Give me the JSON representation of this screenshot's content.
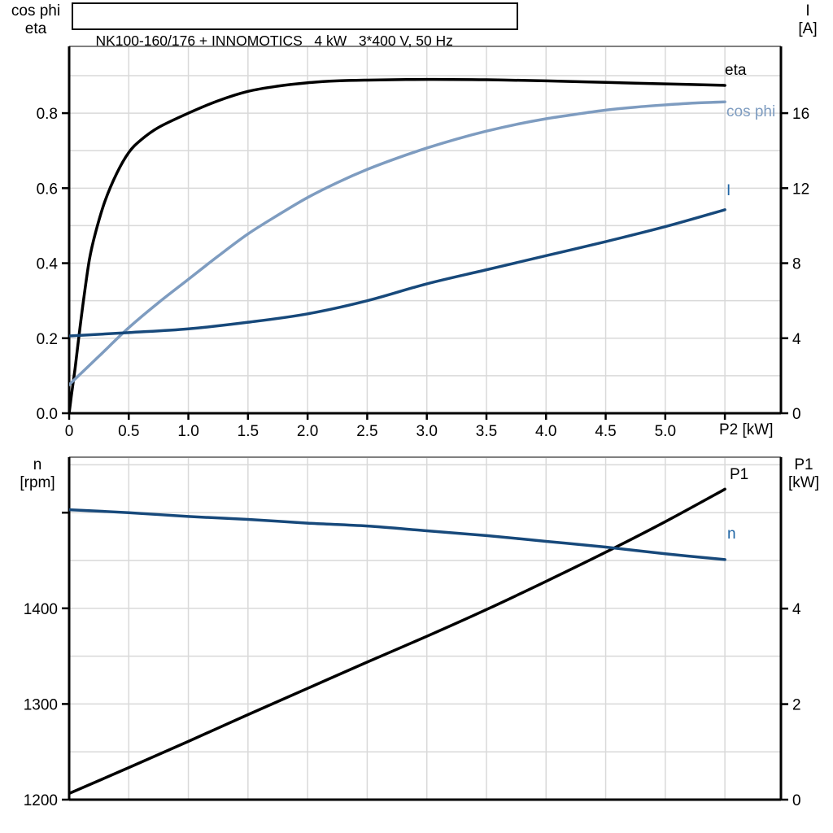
{
  "title_box": {
    "text": "NK100-160/176 + INNOMOTICS   4 kW   3*400 V, 50 Hz"
  },
  "colors": {
    "grid": "#d9d9d9",
    "axis": "#000000",
    "panel_top_border": "#808080",
    "background": "#ffffff",
    "eta_curve": "#000000",
    "cos_phi_curve": "#7e9cc0",
    "current_curve": "#17497b",
    "speed_curve": "#17497b",
    "p1_curve": "#000000",
    "blue_label": "#2166a5"
  },
  "chart_data": [
    {
      "type": "line",
      "panel": "top",
      "grid": true,
      "x_axis": {
        "label": "P2 [kW]",
        "min": 0,
        "max": 5.97,
        "grid_step": 0.5,
        "ticks": [
          {
            "v": 0,
            "label": "0"
          },
          {
            "v": 0.5,
            "label": "0.5"
          },
          {
            "v": 1,
            "label": "1.0"
          },
          {
            "v": 1.5,
            "label": "1.5"
          },
          {
            "v": 2,
            "label": "2.0"
          },
          {
            "v": 2.5,
            "label": "2.5"
          },
          {
            "v": 3,
            "label": "3.0"
          },
          {
            "v": 3.5,
            "label": "3.5"
          },
          {
            "v": 4,
            "label": "4.0"
          },
          {
            "v": 4.5,
            "label": "4.5"
          },
          {
            "v": 5,
            "label": "5.0"
          },
          {
            "v": 5.5,
            "label": ""
          }
        ]
      },
      "left_axis": {
        "title_lines": [
          "cos phi",
          "eta"
        ],
        "min": 0,
        "max": 0.978,
        "grid_step": 0.1,
        "ticks": [
          {
            "v": 0,
            "label": "0.0"
          },
          {
            "v": 0.2,
            "label": "0.2"
          },
          {
            "v": 0.4,
            "label": "0.4"
          },
          {
            "v": 0.6,
            "label": "0.6"
          },
          {
            "v": 0.8,
            "label": "0.8"
          }
        ]
      },
      "right_axis": {
        "title_lines": [
          "I",
          "[A]"
        ],
        "min": 0,
        "max": 19.56,
        "ticks": [
          {
            "v": 0,
            "label": "0"
          },
          {
            "v": 4,
            "label": "4"
          },
          {
            "v": 8,
            "label": "8"
          },
          {
            "v": 12,
            "label": "12"
          },
          {
            "v": 16,
            "label": "16"
          }
        ]
      },
      "series": [
        {
          "name": "eta",
          "label": "eta",
          "axis": "left",
          "color": "#000000",
          "label_color": "#000000",
          "points": [
            [
              0,
              0
            ],
            [
              0.02,
              0.05
            ],
            [
              0.05,
              0.12
            ],
            [
              0.08,
              0.2
            ],
            [
              0.12,
              0.3
            ],
            [
              0.17,
              0.41
            ],
            [
              0.22,
              0.48
            ],
            [
              0.3,
              0.565
            ],
            [
              0.4,
              0.64
            ],
            [
              0.5,
              0.695
            ],
            [
              0.6,
              0.728
            ],
            [
              0.75,
              0.762
            ],
            [
              1,
              0.8
            ],
            [
              1.25,
              0.833
            ],
            [
              1.5,
              0.858
            ],
            [
              1.75,
              0.872
            ],
            [
              2,
              0.881
            ],
            [
              2.25,
              0.886
            ],
            [
              2.5,
              0.888
            ],
            [
              3,
              0.89
            ],
            [
              3.5,
              0.889
            ],
            [
              4,
              0.886
            ],
            [
              4.5,
              0.882
            ],
            [
              5,
              0.878
            ],
            [
              5.5,
              0.874
            ]
          ]
        },
        {
          "name": "cos phi",
          "label": "cos phi",
          "axis": "left",
          "color": "#7e9cc0",
          "label_color": "#7e9cc0",
          "points": [
            [
              0,
              0.076
            ],
            [
              0.25,
              0.152
            ],
            [
              0.5,
              0.228
            ],
            [
              0.75,
              0.295
            ],
            [
              1,
              0.357
            ],
            [
              1.25,
              0.419
            ],
            [
              1.5,
              0.478
            ],
            [
              1.75,
              0.528
            ],
            [
              2,
              0.575
            ],
            [
              2.25,
              0.615
            ],
            [
              2.5,
              0.65
            ],
            [
              2.75,
              0.68
            ],
            [
              3,
              0.707
            ],
            [
              3.25,
              0.731
            ],
            [
              3.5,
              0.752
            ],
            [
              3.75,
              0.77
            ],
            [
              4,
              0.785
            ],
            [
              4.25,
              0.797
            ],
            [
              4.5,
              0.808
            ],
            [
              4.75,
              0.816
            ],
            [
              5,
              0.822
            ],
            [
              5.25,
              0.827
            ],
            [
              5.5,
              0.83
            ]
          ]
        },
        {
          "name": "I",
          "label": "I",
          "axis": "right",
          "color": "#17497b",
          "label_color": "#2166a5",
          "points": [
            [
              0,
              4.12
            ],
            [
              0.5,
              4.3
            ],
            [
              1,
              4.5
            ],
            [
              1.5,
              4.85
            ],
            [
              2,
              5.3
            ],
            [
              2.5,
              6.0
            ],
            [
              3,
              6.9
            ],
            [
              3.5,
              7.65
            ],
            [
              4,
              8.4
            ],
            [
              4.5,
              9.15
            ],
            [
              5,
              9.95
            ],
            [
              5.5,
              10.85
            ]
          ]
        }
      ]
    },
    {
      "type": "line",
      "panel": "bottom",
      "grid": true,
      "x_axis": {
        "label": "",
        "min": 0,
        "max": 5.97,
        "grid_step": 0.5,
        "ticks": []
      },
      "left_axis": {
        "title_lines": [
          "n",
          "[rpm]"
        ],
        "min": 1200,
        "max": 1558,
        "grid_step": 50,
        "ticks": [
          {
            "v": 1200,
            "label": "1200"
          },
          {
            "v": 1300,
            "label": "1300"
          },
          {
            "v": 1400,
            "label": "1400"
          },
          {
            "v": 1500,
            "label": ""
          }
        ]
      },
      "right_axis": {
        "title_lines": [
          "P1",
          "[kW]"
        ],
        "min": 0,
        "max": 7.17,
        "ticks": [
          {
            "v": 0,
            "label": "0"
          },
          {
            "v": 2,
            "label": "2"
          },
          {
            "v": 4,
            "label": "4"
          }
        ]
      },
      "series": [
        {
          "name": "P1",
          "label": "P1",
          "axis": "right",
          "color": "#000000",
          "label_color": "#000000",
          "points": [
            [
              0,
              0.13
            ],
            [
              0.5,
              0.67
            ],
            [
              1,
              1.22
            ],
            [
              1.5,
              1.78
            ],
            [
              2,
              2.33
            ],
            [
              2.5,
              2.88
            ],
            [
              3,
              3.42
            ],
            [
              3.5,
              3.98
            ],
            [
              4,
              4.57
            ],
            [
              4.5,
              5.18
            ],
            [
              5,
              5.82
            ],
            [
              5.5,
              6.5
            ]
          ]
        },
        {
          "name": "n",
          "label": "n",
          "axis": "left",
          "color": "#17497b",
          "label_color": "#2166a5",
          "points": [
            [
              0,
              1503
            ],
            [
              0.5,
              1500
            ],
            [
              1,
              1496
            ],
            [
              1.5,
              1493
            ],
            [
              2,
              1489
            ],
            [
              2.5,
              1486
            ],
            [
              3,
              1481
            ],
            [
              3.5,
              1476
            ],
            [
              4,
              1470
            ],
            [
              4.5,
              1464
            ],
            [
              5,
              1457
            ],
            [
              5.5,
              1451
            ]
          ]
        }
      ]
    }
  ]
}
